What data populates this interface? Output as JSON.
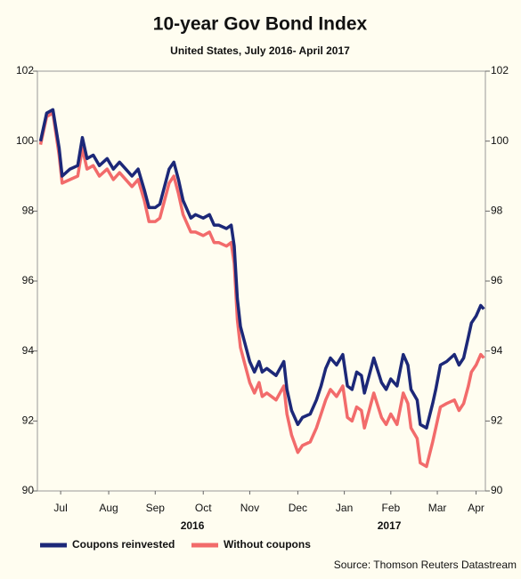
{
  "chart_data": {
    "type": "line",
    "title": "10-year Gov Bond Index",
    "subtitle": "United States, July 2016- April 2017",
    "source": "Source: Thomson Reuters Datastream",
    "xlim": [
      0,
      289
    ],
    "xticks": [
      {
        "value": 15,
        "label": "Jul"
      },
      {
        "value": 46,
        "label": "Aug"
      },
      {
        "value": 76,
        "label": "Sep"
      },
      {
        "value": 107,
        "label": "Oct"
      },
      {
        "value": 137,
        "label": "Nov"
      },
      {
        "value": 168,
        "label": "Dec"
      },
      {
        "value": 198,
        "label": "Jan"
      },
      {
        "value": 228,
        "label": "Feb"
      },
      {
        "value": 258,
        "label": "Mar"
      },
      {
        "value": 283,
        "label": "Apr"
      }
    ],
    "annotations": [
      {
        "text": "2016",
        "x": 100
      },
      {
        "text": "2017",
        "x": 227
      }
    ],
    "ylim": [
      90,
      102
    ],
    "yticks": [
      90,
      92,
      94,
      96,
      98,
      100,
      102
    ],
    "y2lim": [
      90,
      102
    ],
    "y2ticks": [
      90,
      92,
      94,
      96,
      98,
      100,
      102
    ],
    "x": [
      2,
      6,
      10,
      14,
      16,
      21,
      26,
      29,
      32,
      36,
      40,
      45,
      49,
      53,
      57,
      61,
      65,
      69,
      72,
      76,
      79,
      82,
      85,
      88,
      91,
      94,
      97,
      99,
      102,
      107,
      111,
      114,
      117,
      122,
      125,
      127,
      129,
      131,
      134,
      137,
      140,
      143,
      145,
      148,
      154,
      159,
      161,
      164,
      168,
      171,
      176,
      180,
      183,
      186,
      189,
      193,
      197,
      200,
      203,
      206,
      209,
      211,
      214,
      217,
      222,
      225,
      228,
      232,
      236,
      239,
      241,
      245,
      247,
      251,
      255,
      257,
      260,
      264,
      269,
      272,
      275,
      278,
      280,
      283,
      286,
      288
    ],
    "series": [
      {
        "name": "Coupons reinvested",
        "color": "#1c2878",
        "values": [
          100.0,
          100.8,
          100.9,
          99.8,
          99.0,
          99.2,
          99.3,
          100.1,
          99.5,
          99.6,
          99.3,
          99.5,
          99.2,
          99.4,
          99.2,
          99.0,
          99.2,
          98.6,
          98.1,
          98.1,
          98.2,
          98.7,
          99.2,
          99.4,
          98.9,
          98.3,
          98.0,
          97.8,
          97.9,
          97.8,
          97.9,
          97.6,
          97.6,
          97.5,
          97.6,
          97.0,
          95.5,
          94.7,
          94.2,
          93.7,
          93.4,
          93.7,
          93.4,
          93.5,
          93.3,
          93.7,
          92.9,
          92.3,
          91.9,
          92.1,
          92.2,
          92.6,
          93.0,
          93.5,
          93.8,
          93.6,
          93.9,
          93.0,
          92.9,
          93.4,
          93.3,
          92.8,
          93.3,
          93.8,
          93.1,
          92.9,
          93.2,
          93.0,
          93.9,
          93.6,
          92.9,
          92.6,
          91.9,
          91.8,
          92.5,
          92.9,
          93.6,
          93.7,
          93.9,
          93.6,
          93.8,
          94.4,
          94.8,
          95.0,
          95.3,
          95.2
        ]
      },
      {
        "name": "Without coupons",
        "color": "#f26b6b",
        "values": [
          99.9,
          100.7,
          100.8,
          99.6,
          98.8,
          98.9,
          99.0,
          99.8,
          99.2,
          99.3,
          99.0,
          99.2,
          98.9,
          99.1,
          98.9,
          98.7,
          98.9,
          98.3,
          97.7,
          97.7,
          97.8,
          98.3,
          98.8,
          99.0,
          98.5,
          97.9,
          97.6,
          97.4,
          97.4,
          97.3,
          97.4,
          97.1,
          97.1,
          97.0,
          97.1,
          96.5,
          94.9,
          94.1,
          93.6,
          93.1,
          92.8,
          93.1,
          92.7,
          92.8,
          92.6,
          93.0,
          92.2,
          91.6,
          91.1,
          91.3,
          91.4,
          91.8,
          92.2,
          92.6,
          92.9,
          92.7,
          93.0,
          92.1,
          92.0,
          92.4,
          92.3,
          91.8,
          92.3,
          92.8,
          92.1,
          91.9,
          92.2,
          91.9,
          92.8,
          92.5,
          91.8,
          91.5,
          90.8,
          90.7,
          91.4,
          91.8,
          92.4,
          92.5,
          92.6,
          92.3,
          92.5,
          93.0,
          93.4,
          93.6,
          93.9,
          93.8
        ]
      }
    ]
  }
}
